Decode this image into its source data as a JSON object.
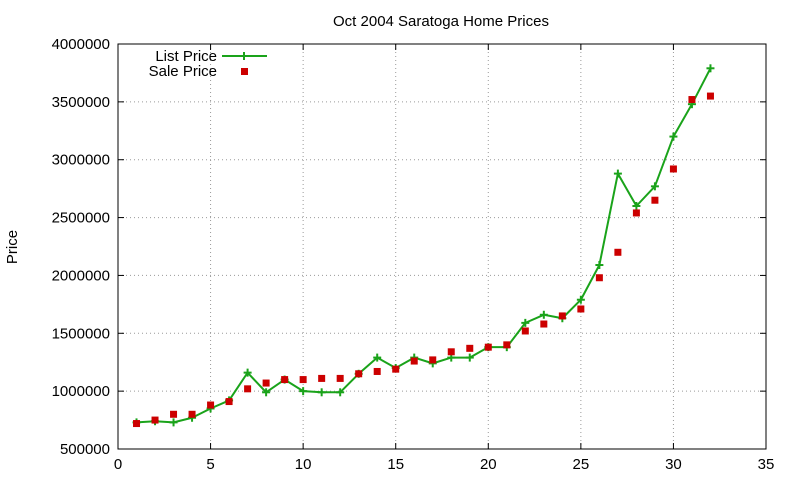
{
  "chart_data": {
    "type": "line",
    "title": "Oct 2004 Saratoga Home Prices",
    "xlabel": "",
    "ylabel": "Price",
    "xlim": [
      0,
      35
    ],
    "ylim": [
      500000,
      4000000
    ],
    "xticks": [
      0,
      5,
      10,
      15,
      20,
      25,
      30,
      35
    ],
    "yticks": [
      500000,
      1000000,
      1500000,
      2000000,
      2500000,
      3000000,
      3500000,
      4000000
    ],
    "grid": true,
    "legend_position": "top-left",
    "series": [
      {
        "name": "List Price",
        "style": "line-plus",
        "color": "#1aa31a",
        "x": [
          1,
          2,
          3,
          4,
          5,
          6,
          7,
          8,
          9,
          10,
          11,
          12,
          13,
          14,
          15,
          16,
          17,
          18,
          19,
          20,
          21,
          22,
          23,
          24,
          25,
          26,
          27,
          28,
          29,
          30,
          31,
          32
        ],
        "y": [
          730000,
          740000,
          730000,
          770000,
          850000,
          920000,
          1160000,
          990000,
          1100000,
          1000000,
          990000,
          990000,
          1150000,
          1290000,
          1200000,
          1290000,
          1240000,
          1290000,
          1290000,
          1380000,
          1380000,
          1590000,
          1660000,
          1630000,
          1790000,
          2090000,
          2880000,
          2600000,
          2770000,
          3200000,
          3480000,
          3790000
        ]
      },
      {
        "name": "Sale Price",
        "style": "square",
        "color": "#cc0000",
        "x": [
          1,
          2,
          3,
          4,
          5,
          6,
          7,
          8,
          9,
          10,
          11,
          12,
          13,
          14,
          15,
          16,
          17,
          18,
          19,
          20,
          21,
          22,
          23,
          24,
          25,
          26,
          27,
          28,
          29,
          30,
          31,
          32
        ],
        "y": [
          720000,
          750000,
          800000,
          800000,
          880000,
          910000,
          1020000,
          1070000,
          1100000,
          1100000,
          1110000,
          1110000,
          1150000,
          1170000,
          1190000,
          1260000,
          1270000,
          1340000,
          1370000,
          1380000,
          1400000,
          1520000,
          1580000,
          1650000,
          1710000,
          1980000,
          2200000,
          2540000,
          2650000,
          2920000,
          3520000,
          3550000
        ]
      }
    ]
  }
}
